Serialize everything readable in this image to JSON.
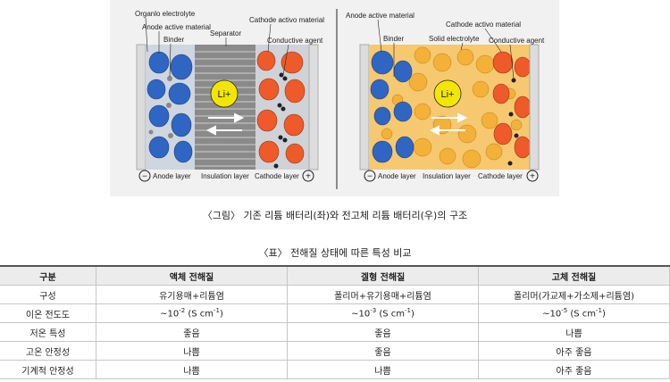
{
  "figure": {
    "left": {
      "organic_electrolyte": "Organlo electrolyte",
      "anode_active_material": "Anode active material",
      "binder": "Binder",
      "separator": "Separator",
      "cathode_active_material": "Cathode activo material",
      "conductive_agent": "Conductive agent",
      "ion": "Li+",
      "anode_layer": "Anode layer",
      "insulation_layer": "Insulation layer",
      "cathode_layer": "Cathode layer"
    },
    "right": {
      "anode_active_material": "Anode active material",
      "binder": "Binder",
      "cathode_active_material": "Cathode activo material",
      "solid_electrolyte": "Solid electrolyte",
      "conductive_agent": "Conductive agent",
      "ion": "Li+",
      "anode_layer": "Anode layer",
      "insulation_layer": "Insulation layer",
      "cathode_layer": "Cathode layer"
    },
    "minus_symbol": "−",
    "plus_symbol": "+"
  },
  "caption_figure": "〈그림〉 기존 리튬 배터리(좌)와 전고체 리튬 배터리(우)의 구조",
  "caption_table": "〈표〉 전해질 상태에 따른 특성 비교",
  "table": {
    "headers": [
      "구분",
      "액체 전해질",
      "겔형 전해질",
      "고체 전해질"
    ],
    "rows": [
      [
        "구성",
        "유기용매+리튬염",
        "폴리머+유기용매+리튬염",
        "폴리머(가교제+가소제+리튬염)"
      ],
      [
        "이온 전도도",
        "~10",
        "~10",
        "~10"
      ],
      [
        "저온 특성",
        "좋음",
        "좋음",
        "나쁨"
      ],
      [
        "고온 안정성",
        "나쁨",
        "좋음",
        "아주 좋음"
      ],
      [
        "기계적 안정성",
        "나쁨",
        "나쁨",
        "아주 좋음"
      ]
    ],
    "conductivity": {
      "exponents": [
        "-2",
        "-3",
        "-5"
      ],
      "unit_open": " (S cm",
      "unit_exp": "-1",
      "unit_close": ")"
    }
  },
  "colors": {
    "anode": "#2f66c4",
    "cathode": "#ee5a2a",
    "electrolyte": "#f3b13a",
    "ion": "#f2e600",
    "separator": "#8a8a8a"
  }
}
